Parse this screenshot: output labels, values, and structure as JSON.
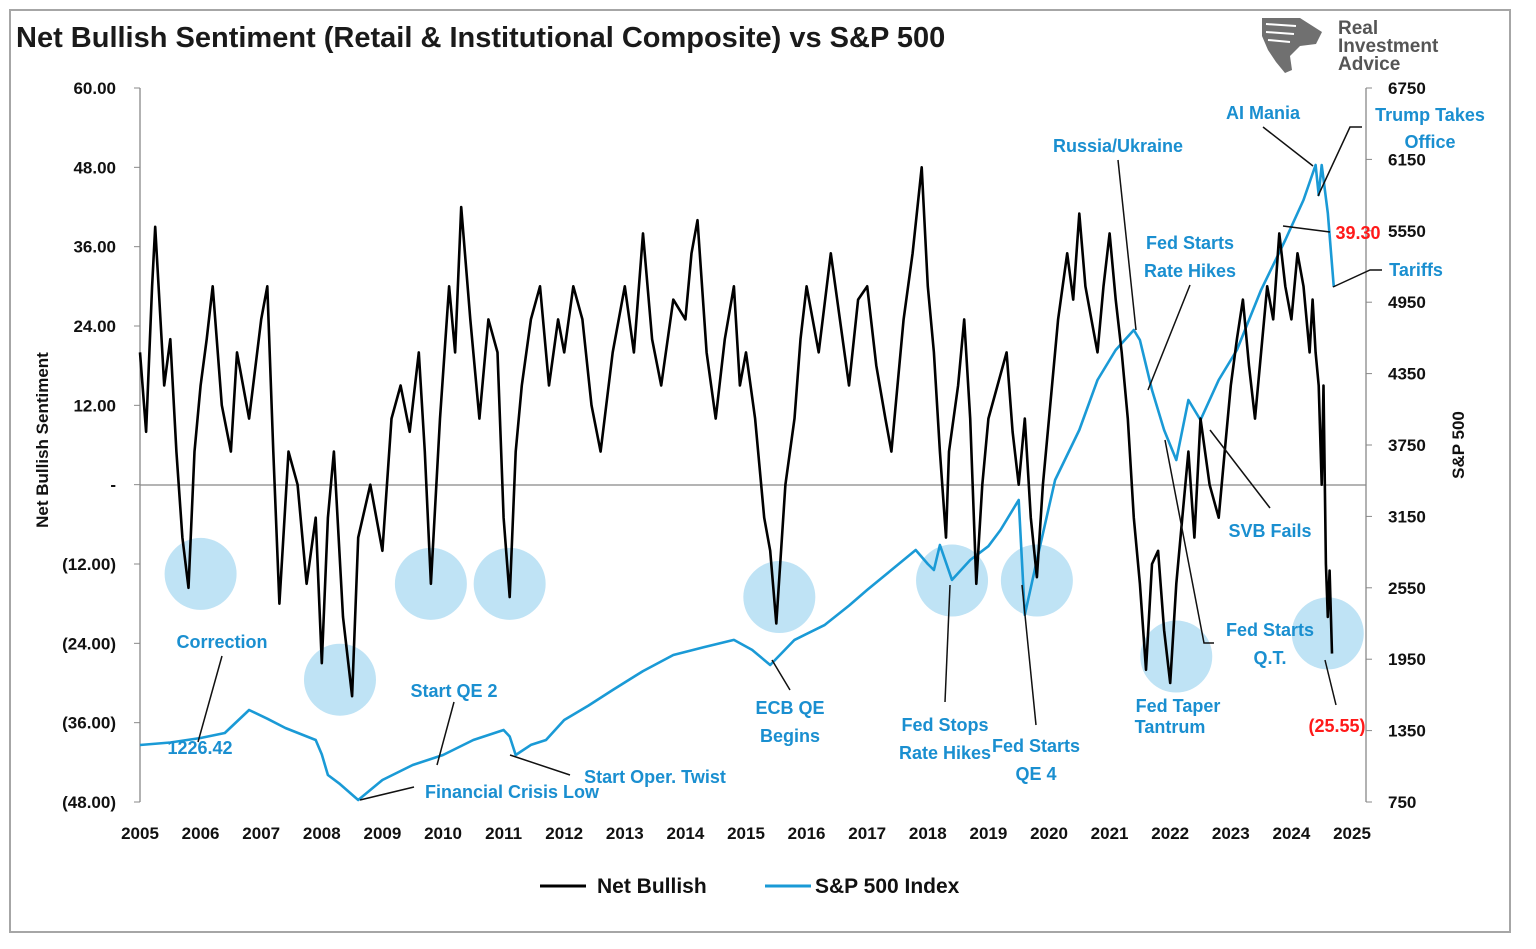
{
  "chart_data": {
    "type": "line",
    "title": "Net Bullish Sentiment (Retail & Institutional Composite) vs S&P 500",
    "logo_text": [
      "Real",
      "Investment",
      "Advice"
    ],
    "xlabel": "",
    "x_ticks": [
      "2005",
      "2006",
      "2007",
      "2008",
      "2009",
      "2010",
      "2011",
      "2012",
      "2013",
      "2014",
      "2015",
      "2016",
      "2017",
      "2018",
      "2019",
      "2020",
      "2021",
      "2022",
      "2023",
      "2024",
      "2025"
    ],
    "xlim": [
      2005,
      2025
    ],
    "y_left": {
      "label": "Net Bullish Sentiment",
      "lim": [
        -48,
        60
      ],
      "ticks": [
        60,
        48,
        36,
        24,
        12,
        0,
        -12,
        -24,
        -36,
        -48
      ],
      "tick_labels": [
        "60.00",
        "48.00",
        "36.00",
        "24.00",
        "12.00",
        "-",
        "(12.00)",
        "(24.00)",
        "(36.00)",
        "(48.00)"
      ]
    },
    "y_right": {
      "label": "S&P 500",
      "lim": [
        750,
        6750
      ],
      "ticks": [
        6750,
        6150,
        5550,
        4950,
        4350,
        3750,
        3150,
        2550,
        1950,
        1350,
        750
      ],
      "tick_labels": [
        "6750",
        "6150",
        "5550",
        "4950",
        "4350",
        "3750",
        "3150",
        "2550",
        "1950",
        "1350",
        "750"
      ]
    },
    "grid": false,
    "legend_position": "bottom",
    "series": [
      {
        "name": "Net Bullish",
        "axis": "left",
        "color": "#000000",
        "points": [
          [
            2005.0,
            20
          ],
          [
            2005.1,
            8
          ],
          [
            2005.2,
            30
          ],
          [
            2005.25,
            39
          ],
          [
            2005.4,
            15
          ],
          [
            2005.5,
            22
          ],
          [
            2005.6,
            5
          ],
          [
            2005.7,
            -8
          ],
          [
            2005.8,
            -15.6
          ],
          [
            2005.9,
            5
          ],
          [
            2006.0,
            15
          ],
          [
            2006.1,
            22
          ],
          [
            2006.2,
            30
          ],
          [
            2006.35,
            12
          ],
          [
            2006.5,
            5
          ],
          [
            2006.6,
            20
          ],
          [
            2006.8,
            10
          ],
          [
            2007.0,
            25
          ],
          [
            2007.1,
            30
          ],
          [
            2007.2,
            5
          ],
          [
            2007.3,
            -18
          ],
          [
            2007.45,
            5
          ],
          [
            2007.6,
            0
          ],
          [
            2007.75,
            -15
          ],
          [
            2007.9,
            -5
          ],
          [
            2008.0,
            -27
          ],
          [
            2008.1,
            -5
          ],
          [
            2008.2,
            5
          ],
          [
            2008.35,
            -20
          ],
          [
            2008.5,
            -32
          ],
          [
            2008.6,
            -8
          ],
          [
            2008.8,
            0
          ],
          [
            2009.0,
            -10
          ],
          [
            2009.15,
            10
          ],
          [
            2009.3,
            15
          ],
          [
            2009.45,
            8
          ],
          [
            2009.6,
            20
          ],
          [
            2009.7,
            5
          ],
          [
            2009.8,
            -15
          ],
          [
            2009.95,
            10
          ],
          [
            2010.1,
            30
          ],
          [
            2010.2,
            20
          ],
          [
            2010.3,
            42
          ],
          [
            2010.45,
            25
          ],
          [
            2010.6,
            10
          ],
          [
            2010.75,
            25
          ],
          [
            2010.9,
            20
          ],
          [
            2011.0,
            -5
          ],
          [
            2011.1,
            -17
          ],
          [
            2011.2,
            5
          ],
          [
            2011.3,
            15
          ],
          [
            2011.45,
            25
          ],
          [
            2011.6,
            30
          ],
          [
            2011.75,
            15
          ],
          [
            2011.9,
            25
          ],
          [
            2012.0,
            20
          ],
          [
            2012.15,
            30
          ],
          [
            2012.3,
            25
          ],
          [
            2012.45,
            12
          ],
          [
            2012.6,
            5
          ],
          [
            2012.8,
            20
          ],
          [
            2013.0,
            30
          ],
          [
            2013.15,
            20
          ],
          [
            2013.3,
            38
          ],
          [
            2013.45,
            22
          ],
          [
            2013.6,
            15
          ],
          [
            2013.8,
            28
          ],
          [
            2014.0,
            25
          ],
          [
            2014.1,
            35
          ],
          [
            2014.2,
            40
          ],
          [
            2014.35,
            20
          ],
          [
            2014.5,
            10
          ],
          [
            2014.65,
            22
          ],
          [
            2014.8,
            30
          ],
          [
            2014.9,
            15
          ],
          [
            2015.0,
            20
          ],
          [
            2015.15,
            10
          ],
          [
            2015.3,
            -5
          ],
          [
            2015.4,
            -10
          ],
          [
            2015.5,
            -21
          ],
          [
            2015.65,
            0
          ],
          [
            2015.8,
            10
          ],
          [
            2015.9,
            22
          ],
          [
            2016.0,
            30
          ],
          [
            2016.2,
            20
          ],
          [
            2016.4,
            35
          ],
          [
            2016.55,
            25
          ],
          [
            2016.7,
            15
          ],
          [
            2016.85,
            28
          ],
          [
            2017.0,
            30
          ],
          [
            2017.15,
            18
          ],
          [
            2017.3,
            10
          ],
          [
            2017.4,
            5
          ],
          [
            2017.5,
            15
          ],
          [
            2017.6,
            25
          ],
          [
            2017.75,
            35
          ],
          [
            2017.9,
            48
          ],
          [
            2018.0,
            30
          ],
          [
            2018.1,
            20
          ],
          [
            2018.2,
            5
          ],
          [
            2018.3,
            -8
          ],
          [
            2018.35,
            5
          ],
          [
            2018.5,
            15
          ],
          [
            2018.6,
            25
          ],
          [
            2018.7,
            10
          ],
          [
            2018.8,
            -15
          ],
          [
            2018.9,
            0
          ],
          [
            2019.0,
            10
          ],
          [
            2019.15,
            15
          ],
          [
            2019.3,
            20
          ],
          [
            2019.4,
            8
          ],
          [
            2019.5,
            0
          ],
          [
            2019.6,
            10
          ],
          [
            2019.7,
            -5
          ],
          [
            2019.8,
            -14
          ],
          [
            2019.9,
            0
          ],
          [
            2020.0,
            10
          ],
          [
            2020.15,
            25
          ],
          [
            2020.3,
            35
          ],
          [
            2020.4,
            28
          ],
          [
            2020.5,
            41
          ],
          [
            2020.6,
            30
          ],
          [
            2020.7,
            25
          ],
          [
            2020.8,
            20
          ],
          [
            2020.9,
            30
          ],
          [
            2021.0,
            38
          ],
          [
            2021.1,
            28
          ],
          [
            2021.2,
            20
          ],
          [
            2021.3,
            10
          ],
          [
            2021.4,
            -5
          ],
          [
            2021.5,
            -15
          ],
          [
            2021.6,
            -28
          ],
          [
            2021.7,
            -12
          ],
          [
            2021.8,
            -10
          ],
          [
            2021.9,
            -22
          ],
          [
            2022.0,
            -30
          ],
          [
            2022.1,
            -15
          ],
          [
            2022.2,
            -5
          ],
          [
            2022.3,
            5
          ],
          [
            2022.4,
            -8
          ],
          [
            2022.5,
            10
          ],
          [
            2022.65,
            0
          ],
          [
            2022.8,
            -5
          ],
          [
            2022.9,
            5
          ],
          [
            2023.0,
            15
          ],
          [
            2023.1,
            22
          ],
          [
            2023.2,
            28
          ],
          [
            2023.3,
            18
          ],
          [
            2023.4,
            10
          ],
          [
            2023.5,
            20
          ],
          [
            2023.6,
            30
          ],
          [
            2023.7,
            25
          ],
          [
            2023.8,
            38
          ],
          [
            2023.9,
            30
          ],
          [
            2024.0,
            25
          ],
          [
            2024.1,
            35
          ],
          [
            2024.2,
            30
          ],
          [
            2024.3,
            20
          ],
          [
            2024.35,
            28
          ],
          [
            2024.4,
            20
          ],
          [
            2024.45,
            15
          ],
          [
            2024.5,
            0
          ],
          [
            2024.53,
            15
          ],
          [
            2024.57,
            -12
          ],
          [
            2024.6,
            -20
          ],
          [
            2024.63,
            -13
          ],
          [
            2024.67,
            -25.55
          ]
        ]
      },
      {
        "name": "S&P 500 Index",
        "axis": "right",
        "color": "#1a9ad6",
        "points": [
          [
            2005.0,
            1229
          ],
          [
            2005.5,
            1250
          ],
          [
            2006.0,
            1288
          ],
          [
            2006.4,
            1330
          ],
          [
            2006.8,
            1523
          ],
          [
            2007.1,
            1450
          ],
          [
            2007.4,
            1372
          ],
          [
            2007.9,
            1271
          ],
          [
            2008.0,
            1150
          ],
          [
            2008.1,
            977
          ],
          [
            2008.3,
            900
          ],
          [
            2008.6,
            767
          ],
          [
            2009.0,
            935
          ],
          [
            2009.5,
            1061
          ],
          [
            2010.0,
            1145
          ],
          [
            2010.5,
            1271
          ],
          [
            2011.0,
            1355
          ],
          [
            2011.1,
            1300
          ],
          [
            2011.2,
            1145
          ],
          [
            2011.45,
            1230
          ],
          [
            2011.7,
            1271
          ],
          [
            2012.0,
            1439
          ],
          [
            2012.4,
            1560
          ],
          [
            2012.8,
            1691
          ],
          [
            2013.3,
            1850
          ],
          [
            2013.8,
            1985
          ],
          [
            2014.3,
            2050
          ],
          [
            2014.8,
            2112
          ],
          [
            2015.1,
            2028
          ],
          [
            2015.4,
            1901
          ],
          [
            2015.8,
            2112
          ],
          [
            2016.3,
            2238
          ],
          [
            2016.7,
            2400
          ],
          [
            2017.0,
            2532
          ],
          [
            2017.4,
            2700
          ],
          [
            2017.8,
            2868
          ],
          [
            2018.0,
            2750
          ],
          [
            2018.1,
            2700
          ],
          [
            2018.2,
            2910
          ],
          [
            2018.4,
            2616
          ],
          [
            2018.7,
            2784
          ],
          [
            2019.0,
            2900
          ],
          [
            2019.2,
            3036
          ],
          [
            2019.5,
            3288
          ],
          [
            2019.6,
            2322
          ],
          [
            2019.8,
            2784
          ],
          [
            2020.1,
            3456
          ],
          [
            2020.5,
            3876
          ],
          [
            2020.8,
            4296
          ],
          [
            2021.1,
            4548
          ],
          [
            2021.4,
            4716
          ],
          [
            2021.5,
            4632
          ],
          [
            2021.7,
            4212
          ],
          [
            2021.9,
            3876
          ],
          [
            2022.1,
            3624
          ],
          [
            2022.3,
            4128
          ],
          [
            2022.5,
            3960
          ],
          [
            2022.8,
            4296
          ],
          [
            2023.1,
            4548
          ],
          [
            2023.5,
            5053
          ],
          [
            2023.9,
            5473
          ],
          [
            2024.2,
            5809
          ],
          [
            2024.4,
            6103
          ],
          [
            2024.45,
            5851
          ],
          [
            2024.5,
            6103
          ],
          [
            2024.6,
            5700
          ],
          [
            2024.65,
            5389
          ],
          [
            2024.7,
            5078
          ]
        ]
      }
    ],
    "annotations": {
      "correction": "Correction",
      "start_value": "1226.42",
      "start_qe2": "Start QE 2",
      "financial_crisis_low": "Financial Crisis Low",
      "start_oper_twist": "Start Oper. Twist",
      "ecb_qe_1": "ECB QE",
      "ecb_qe_2": "Begins",
      "fed_stops_1": "Fed Stops",
      "fed_stops_2": "Rate Hikes",
      "fed_qe4_1": "Fed Starts",
      "fed_qe4_2": "QE 4",
      "taper_1": "Fed Taper",
      "taper_2": "Tantrum",
      "qt_1": "Fed Starts",
      "qt_2": "Q.T.",
      "svb": "SVB Fails",
      "russia": "Russia/Ukraine",
      "rate_hikes_1": "Fed Starts",
      "rate_hikes_2": "Rate Hikes",
      "ai_mania": "AI Mania",
      "trump_1": "Trump Takes",
      "trump_2": "Office",
      "high_value": "39.30",
      "tariffs": "Tariffs",
      "low_value": "(25.55)"
    },
    "highlight_color": "#bfe3f5",
    "annotation_color": "#1a8fd0",
    "value_label_color": "#ff1a1a"
  }
}
